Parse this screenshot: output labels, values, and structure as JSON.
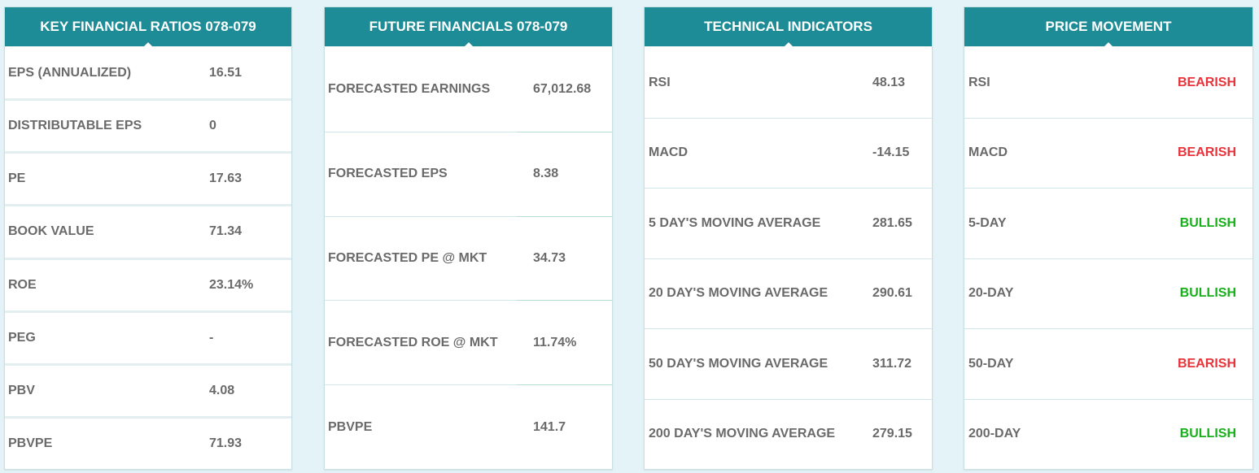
{
  "key_ratios": {
    "title": "KEY FINANCIAL RATIOS 078-079",
    "rows": [
      {
        "label": "EPS (ANNUALIZED)",
        "value": "16.51"
      },
      {
        "label": "DISTRIBUTABLE EPS",
        "value": "0"
      },
      {
        "label": "PE",
        "value": "17.63"
      },
      {
        "label": "BOOK VALUE",
        "value": "71.34"
      },
      {
        "label": "ROE",
        "value": "23.14%"
      },
      {
        "label": "PEG",
        "value": "-"
      },
      {
        "label": "PBV",
        "value": "4.08"
      },
      {
        "label": "PBVPE",
        "value": "71.93"
      }
    ]
  },
  "future_financials": {
    "title": "FUTURE FINANCIALS 078-079",
    "rows": [
      {
        "label": "FORECASTED EARNINGS",
        "value": "67,012.68"
      },
      {
        "label": "FORECASTED EPS",
        "value": "8.38"
      },
      {
        "label": "FORECASTED PE @ MKT",
        "value": "34.73"
      },
      {
        "label": "FORECASTED ROE @ MKT",
        "value": "11.74%"
      },
      {
        "label": "PBVPE",
        "value": "141.7"
      }
    ]
  },
  "technical_indicators": {
    "title": "TECHNICAL INDICATORS",
    "rows": [
      {
        "label": "RSI",
        "value": "48.13"
      },
      {
        "label": "MACD",
        "value": "-14.15"
      },
      {
        "label": "5 DAY'S MOVING AVERAGE",
        "value": "281.65"
      },
      {
        "label": "20 DAY'S MOVING AVERAGE",
        "value": "290.61"
      },
      {
        "label": "50 DAY'S MOVING AVERAGE",
        "value": "311.72"
      },
      {
        "label": "200 DAY'S MOVING AVERAGE",
        "value": "279.15"
      }
    ]
  },
  "price_movement": {
    "title": "PRICE MOVEMENT",
    "rows": [
      {
        "label": "RSI",
        "signal": "BEARISH"
      },
      {
        "label": "MACD",
        "signal": "BEARISH"
      },
      {
        "label": "5-DAY",
        "signal": "BULLISH"
      },
      {
        "label": "20-DAY",
        "signal": "BULLISH"
      },
      {
        "label": "50-DAY",
        "signal": "BEARISH"
      },
      {
        "label": "200-DAY",
        "signal": "BULLISH"
      }
    ]
  },
  "colors": {
    "header_bg": "#1e8c96",
    "bearish": "#e8333b",
    "bullish": "#17b01a",
    "page_bg": "#e3f3f7"
  }
}
